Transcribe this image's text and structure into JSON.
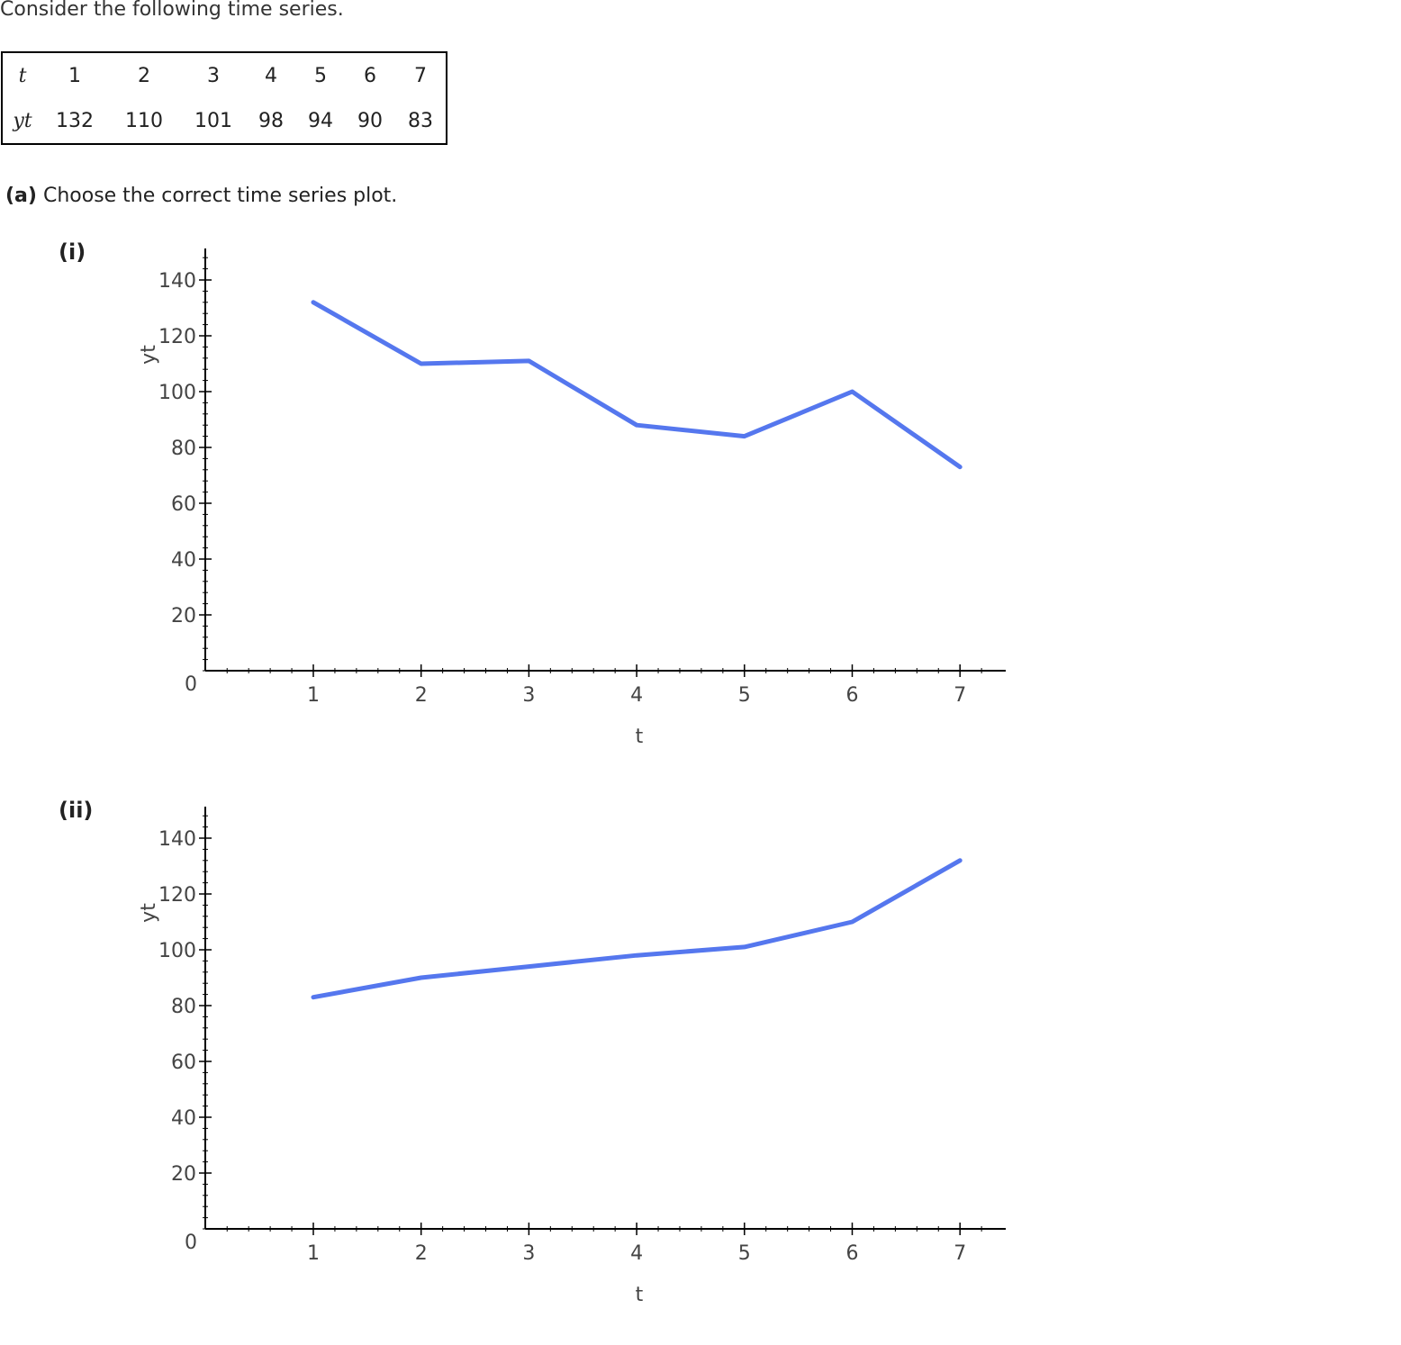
{
  "intro": "Consider the following time series.",
  "table": {
    "row_t_label": "t",
    "row_y_label": "yt",
    "t": [
      "1",
      "2",
      "3",
      "4",
      "5",
      "6",
      "7"
    ],
    "y": [
      "132",
      "110",
      "101",
      "98",
      "94",
      "90",
      "83"
    ]
  },
  "question": {
    "part_label": "(a)",
    "text": "Choose the correct time series plot."
  },
  "colors": {
    "line": "#5577ee",
    "axis": "#000000"
  },
  "chart_data": [
    {
      "type": "line",
      "option_label": "(i)",
      "x": [
        1,
        2,
        3,
        4,
        5,
        6,
        7
      ],
      "series": [
        {
          "values": [
            132,
            110,
            111,
            88,
            84,
            100,
            73
          ]
        }
      ],
      "xlabel": "t",
      "ylabel": "yt",
      "xlim": [
        0,
        7.4
      ],
      "ylim": [
        0,
        150
      ],
      "xticks": [
        "1",
        "2",
        "3",
        "4",
        "5",
        "6",
        "7"
      ],
      "yticks": [
        "0",
        "20",
        "40",
        "60",
        "80",
        "100",
        "120",
        "140"
      ],
      "grid": false
    },
    {
      "type": "line",
      "option_label": "(ii)",
      "x": [
        1,
        2,
        3,
        4,
        5,
        6,
        7
      ],
      "series": [
        {
          "values": [
            83,
            90,
            94,
            98,
            101,
            110,
            132
          ]
        }
      ],
      "xlabel": "t",
      "ylabel": "yt",
      "xlim": [
        0,
        7.4
      ],
      "ylim": [
        0,
        150
      ],
      "xticks": [
        "1",
        "2",
        "3",
        "4",
        "5",
        "6",
        "7"
      ],
      "yticks": [
        "0",
        "20",
        "40",
        "60",
        "80",
        "100",
        "120",
        "140"
      ],
      "grid": false
    }
  ]
}
